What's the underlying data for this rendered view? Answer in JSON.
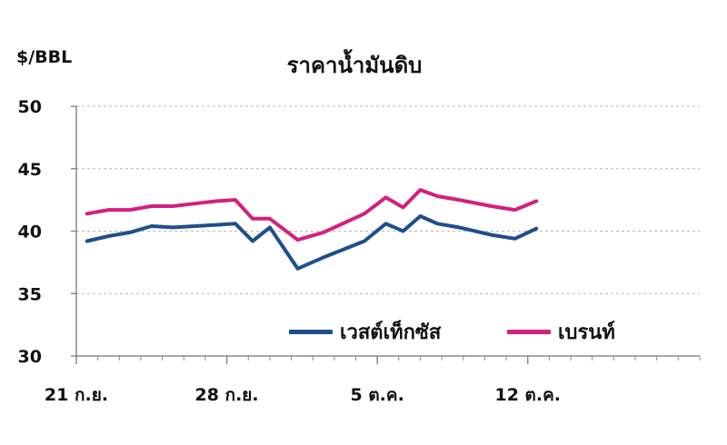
{
  "chart_data": {
    "type": "line",
    "title": "ราคาน้ำมันดิบ",
    "ylabel": "$/BBL",
    "xlabel": "",
    "ylim": [
      30,
      50
    ],
    "yticks": [
      30,
      35,
      40,
      45,
      50
    ],
    "x_tick_labels": [
      "21 ก.ย.",
      "28 ก.ย.",
      "5 ต.ค.",
      "12 ต.ค."
    ],
    "x_tick_index": [
      0,
      7,
      14,
      21
    ],
    "x_count": 29,
    "grid": true,
    "legend_position": "bottom-right",
    "series": [
      {
        "name": "เวสต์เท็กซัส",
        "color": "#1f4e8c",
        "x": [
          0.5,
          1.5,
          2.5,
          3.5,
          4.5,
          5.5,
          6.5,
          7.4,
          8.2,
          9.0,
          10.3,
          11.5,
          13.4,
          14.4,
          15.2,
          16.0,
          16.8,
          17.8,
          19.3,
          20.4,
          21.4
        ],
        "values": [
          39.2,
          39.6,
          39.9,
          40.4,
          40.3,
          40.4,
          40.5,
          40.6,
          39.2,
          40.3,
          37.0,
          37.9,
          39.2,
          40.6,
          40.0,
          41.2,
          40.6,
          40.3,
          39.7,
          39.4,
          40.2
        ]
      },
      {
        "name": "เบรนท์",
        "color": "#d41f7f",
        "x": [
          0.5,
          1.5,
          2.5,
          3.5,
          4.5,
          5.5,
          6.5,
          7.4,
          8.2,
          9.0,
          10.3,
          11.5,
          13.4,
          14.4,
          15.2,
          16.0,
          16.8,
          17.8,
          19.3,
          20.4,
          21.4
        ],
        "values": [
          41.4,
          41.7,
          41.7,
          42.0,
          42.0,
          42.2,
          42.4,
          42.5,
          41.0,
          41.0,
          39.3,
          39.9,
          41.4,
          42.7,
          41.9,
          43.3,
          42.8,
          42.5,
          42.0,
          41.7,
          42.4
        ]
      }
    ]
  }
}
